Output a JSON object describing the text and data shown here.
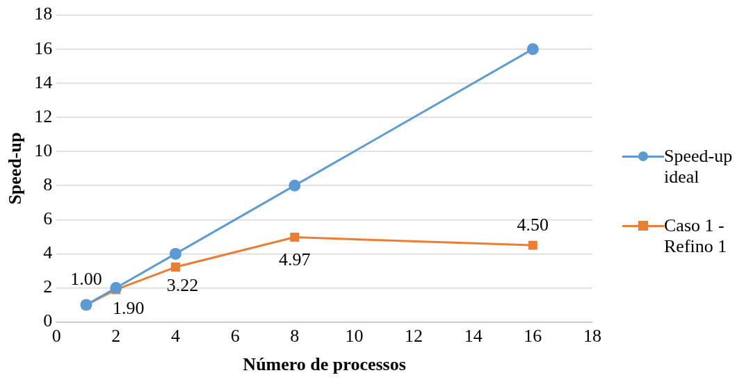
{
  "chart_data": {
    "type": "line",
    "xlabel": "Número de processos",
    "ylabel": "Speed-up",
    "x": [
      1,
      2,
      4,
      8,
      16
    ],
    "series": [
      {
        "name": "Speed-up ideal",
        "color": "#5b9bd5",
        "marker": "circle",
        "values": [
          1,
          2,
          4,
          8,
          16
        ]
      },
      {
        "name": "Caso 1 - Refino 1",
        "color": "#ed7d31",
        "marker": "square",
        "values": [
          1,
          1.9,
          3.22,
          4.97,
          4.5
        ],
        "value_labels": [
          "1.00",
          "1.90",
          "3.22",
          "4.97",
          "4.50"
        ]
      }
    ],
    "xlim": [
      0,
      18
    ],
    "xticks": [
      0,
      2,
      4,
      6,
      8,
      10,
      12,
      14,
      16,
      18
    ],
    "ylim": [
      0,
      18
    ],
    "yticks": [
      0,
      2,
      4,
      6,
      8,
      10,
      12,
      14,
      16,
      18
    ],
    "grid": "y",
    "legend": "right"
  }
}
